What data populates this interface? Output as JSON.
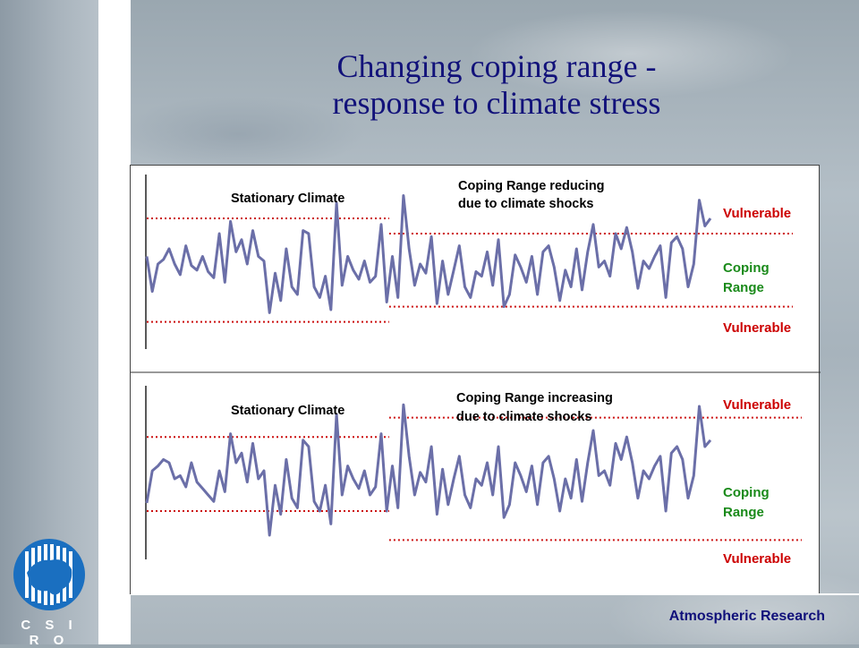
{
  "slide": {
    "title_line1": "Changing coping range -",
    "title_line2": "response to climate stress",
    "footer": "Atmospheric Research",
    "logo_text": "C S I R O"
  },
  "colors": {
    "title": "#12127a",
    "series_line": "#6b6fa8",
    "threshold_line": "#cc1111",
    "vulnerable_label": "#cc0000",
    "coping_label": "#1a8a1a"
  },
  "top_panel": {
    "stationary_label": "Stationary Climate",
    "change_label_line1": "Coping Range reducing",
    "change_label_line2": "due to climate shocks",
    "vulnerable_upper": "Vulnerable",
    "coping_line1": "Coping",
    "coping_line2": "Range",
    "vulnerable_lower": "Vulnerable"
  },
  "bottom_panel": {
    "stationary_label": "Stationary Climate",
    "change_label_line1": "Coping Range increasing",
    "change_label_line2": "due to climate shocks",
    "vulnerable_upper": "Vulnerable",
    "coping_line1": "Coping",
    "coping_line2": "Range",
    "vulnerable_lower": "Vulnerable"
  },
  "chart_data": [
    {
      "type": "line",
      "series": [
        {
          "values": [
            0.55,
            0.32,
            0.5,
            0.53,
            0.6,
            0.5,
            0.43,
            0.62,
            0.49,
            0.46,
            0.55,
            0.45,
            0.41,
            0.7,
            0.38,
            0.78,
            0.58,
            0.66,
            0.5,
            0.72,
            0.55,
            0.52,
            0.18,
            0.44,
            0.26,
            0.6,
            0.35,
            0.3,
            0.72,
            0.7,
            0.35,
            0.28,
            0.42,
            0.2,
            0.9,
            0.36,
            0.55,
            0.46,
            0.4,
            0.52,
            0.38,
            0.42,
            0.76,
            0.25,
            0.55,
            0.28,
            0.95,
            0.6,
            0.36,
            0.5,
            0.44,
            0.68,
            0.24,
            0.52,
            0.3,
            0.46,
            0.62,
            0.35,
            0.28,
            0.45,
            0.42,
            0.58,
            0.36,
            0.66,
            0.22,
            0.3,
            0.56,
            0.48,
            0.38,
            0.55,
            0.3,
            0.58,
            0.62,
            0.48,
            0.26,
            0.46,
            0.35,
            0.6,
            0.33,
            0.58,
            0.76,
            0.48,
            0.52,
            0.42,
            0.7,
            0.6,
            0.74,
            0.58,
            0.34,
            0.52,
            0.47,
            0.55,
            0.62,
            0.28,
            0.64,
            0.68,
            0.6,
            0.35,
            0.5,
            0.92,
            0.75,
            0.8
          ]
        }
      ],
      "phases": [
        {
          "name": "Stationary Climate",
          "upper_threshold": 0.8,
          "lower_threshold": 0.12
        },
        {
          "name": "Coping Range reducing",
          "upper_threshold": 0.7,
          "lower_threshold": 0.22
        }
      ]
    },
    {
      "type": "line",
      "series": [
        {
          "values": [
            0.35,
            0.55,
            0.58,
            0.62,
            0.6,
            0.5,
            0.52,
            0.45,
            0.6,
            0.48,
            0.44,
            0.4,
            0.36,
            0.55,
            0.42,
            0.78,
            0.6,
            0.66,
            0.48,
            0.72,
            0.5,
            0.55,
            0.15,
            0.46,
            0.28,
            0.62,
            0.38,
            0.32,
            0.74,
            0.7,
            0.36,
            0.3,
            0.46,
            0.22,
            0.9,
            0.4,
            0.58,
            0.5,
            0.44,
            0.55,
            0.4,
            0.45,
            0.78,
            0.3,
            0.58,
            0.32,
            0.96,
            0.64,
            0.4,
            0.54,
            0.48,
            0.7,
            0.28,
            0.56,
            0.34,
            0.5,
            0.64,
            0.4,
            0.32,
            0.5,
            0.46,
            0.6,
            0.4,
            0.7,
            0.26,
            0.34,
            0.6,
            0.52,
            0.42,
            0.58,
            0.34,
            0.6,
            0.64,
            0.5,
            0.3,
            0.5,
            0.38,
            0.62,
            0.36,
            0.6,
            0.8,
            0.52,
            0.55,
            0.46,
            0.72,
            0.62,
            0.76,
            0.6,
            0.38,
            0.55,
            0.5,
            0.58,
            0.64,
            0.3,
            0.66,
            0.7,
            0.62,
            0.38,
            0.52,
            0.95,
            0.7,
            0.74
          ]
        }
      ],
      "phases": [
        {
          "name": "Stationary Climate",
          "upper_threshold": 0.76,
          "lower_threshold": 0.3
        },
        {
          "name": "Coping Range increasing",
          "upper_threshold": 0.88,
          "lower_threshold": 0.12
        }
      ]
    }
  ]
}
